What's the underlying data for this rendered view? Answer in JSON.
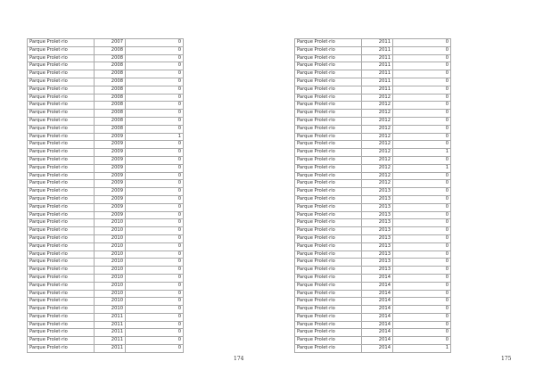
{
  "pages": [
    {
      "page_number": "174",
      "rows": [
        [
          "Parque Prolet·rio",
          "2007",
          "0"
        ],
        [
          "Parque Prolet·rio",
          "2008",
          "0"
        ],
        [
          "Parque Prolet·rio",
          "2008",
          "0"
        ],
        [
          "Parque Prolet·rio",
          "2008",
          "0"
        ],
        [
          "Parque Prolet·rio",
          "2008",
          "0"
        ],
        [
          "Parque Prolet·rio",
          "2008",
          "0"
        ],
        [
          "Parque Prolet·rio",
          "2008",
          "0"
        ],
        [
          "Parque Prolet·rio",
          "2008",
          "0"
        ],
        [
          "Parque Prolet·rio",
          "2008",
          "0"
        ],
        [
          "Parque Prolet·rio",
          "2008",
          "0"
        ],
        [
          "Parque Prolet·rio",
          "2008",
          "0"
        ],
        [
          "Parque Prolet·rio",
          "2008",
          "0"
        ],
        [
          "Parque Prolet·rio",
          "2009",
          "1"
        ],
        [
          "Parque Prolet·rio",
          "2009",
          "0"
        ],
        [
          "Parque Prolet·rio",
          "2009",
          "0"
        ],
        [
          "Parque Prolet·rio",
          "2009",
          "0"
        ],
        [
          "Parque Prolet·rio",
          "2009",
          "0"
        ],
        [
          "Parque Prolet·rio",
          "2009",
          "0"
        ],
        [
          "Parque Prolet·rio",
          "2009",
          "0"
        ],
        [
          "Parque Prolet·rio",
          "2009",
          "0"
        ],
        [
          "Parque Prolet·rio",
          "2009",
          "0"
        ],
        [
          "Parque Prolet·rio",
          "2009",
          "0"
        ],
        [
          "Parque Prolet·rio",
          "2009",
          "0"
        ],
        [
          "Parque Prolet·rio",
          "2010",
          "0"
        ],
        [
          "Parque Prolet·rio",
          "2010",
          "0"
        ],
        [
          "Parque Prolet·rio",
          "2010",
          "0"
        ],
        [
          "Parque Prolet·rio",
          "2010",
          "0"
        ],
        [
          "Parque Prolet·rio",
          "2010",
          "0"
        ],
        [
          "Parque Prolet·rio",
          "2010",
          "0"
        ],
        [
          "Parque Prolet·rio",
          "2010",
          "0"
        ],
        [
          "Parque Prolet·rio",
          "2010",
          "0"
        ],
        [
          "Parque Prolet·rio",
          "2010",
          "0"
        ],
        [
          "Parque Prolet·rio",
          "2010",
          "0"
        ],
        [
          "Parque Prolet·rio",
          "2010",
          "0"
        ],
        [
          "Parque Prolet·rio",
          "2010",
          "0"
        ],
        [
          "Parque Prolet·rio",
          "2011",
          "0"
        ],
        [
          "Parque Prolet·rio",
          "2011",
          "0"
        ],
        [
          "Parque Prolet·rio",
          "2011",
          "0"
        ],
        [
          "Parque Prolet·rio",
          "2011",
          "0"
        ],
        [
          "Parque Prolet·rio",
          "2011",
          "0"
        ]
      ]
    },
    {
      "page_number": "175",
      "rows": [
        [
          "Parque Prolet·rio",
          "2011",
          "0"
        ],
        [
          "Parque Prolet·rio",
          "2011",
          "0"
        ],
        [
          "Parque Prolet·rio",
          "2011",
          "0"
        ],
        [
          "Parque Prolet·rio",
          "2011",
          "0"
        ],
        [
          "Parque Prolet·rio",
          "2011",
          "0"
        ],
        [
          "Parque Prolet·rio",
          "2011",
          "0"
        ],
        [
          "Parque Prolet·rio",
          "2011",
          "0"
        ],
        [
          "Parque Prolet·rio",
          "2012",
          "0"
        ],
        [
          "Parque Prolet·rio",
          "2012",
          "0"
        ],
        [
          "Parque Prolet·rio",
          "2012",
          "0"
        ],
        [
          "Parque Prolet·rio",
          "2012",
          "0"
        ],
        [
          "Parque Prolet·rio",
          "2012",
          "0"
        ],
        [
          "Parque Prolet·rio",
          "2012",
          "0"
        ],
        [
          "Parque Prolet·rio",
          "2012",
          "0"
        ],
        [
          "Parque Prolet·rio",
          "2012",
          "1"
        ],
        [
          "Parque Prolet·rio",
          "2012",
          "0"
        ],
        [
          "Parque Prolet·rio",
          "2012",
          "1"
        ],
        [
          "Parque Prolet·rio",
          "2012",
          "0"
        ],
        [
          "Parque Prolet·rio",
          "2012",
          "0"
        ],
        [
          "Parque Prolet·rio",
          "2013",
          "0"
        ],
        [
          "Parque Prolet·rio",
          "2013",
          "0"
        ],
        [
          "Parque Prolet·rio",
          "2013",
          "0"
        ],
        [
          "Parque Prolet·rio",
          "2013",
          "0"
        ],
        [
          "Parque Prolet·rio",
          "2013",
          "0"
        ],
        [
          "Parque Prolet·rio",
          "2013",
          "0"
        ],
        [
          "Parque Prolet·rio",
          "2013",
          "0"
        ],
        [
          "Parque Prolet·rio",
          "2013",
          "0"
        ],
        [
          "Parque Prolet·rio",
          "2013",
          "0"
        ],
        [
          "Parque Prolet·rio",
          "2013",
          "0"
        ],
        [
          "Parque Prolet·rio",
          "2013",
          "0"
        ],
        [
          "Parque Prolet·rio",
          "2014",
          "0"
        ],
        [
          "Parque Prolet·rio",
          "2014",
          "0"
        ],
        [
          "Parque Prolet·rio",
          "2014",
          "0"
        ],
        [
          "Parque Prolet·rio",
          "2014",
          "0"
        ],
        [
          "Parque Prolet·rio",
          "2014",
          "0"
        ],
        [
          "Parque Prolet·rio",
          "2014",
          "0"
        ],
        [
          "Parque Prolet·rio",
          "2014",
          "0"
        ],
        [
          "Parque Prolet·rio",
          "2014",
          "0"
        ],
        [
          "Parque Prolet·rio",
          "2014",
          "0"
        ],
        [
          "Parque Prolet·rio",
          "2014",
          "1"
        ]
      ]
    }
  ]
}
